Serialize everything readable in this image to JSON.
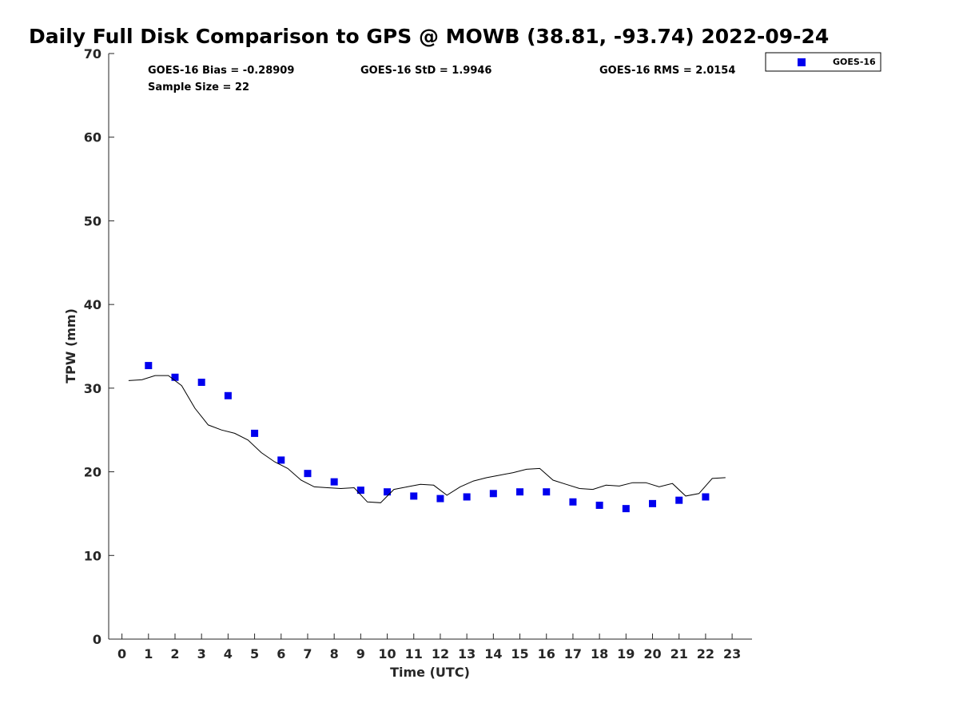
{
  "chart_data": {
    "type": "scatter",
    "title": "Daily Full Disk Comparison to GPS @ MOWB (38.81, -93.74) 2022-09-24",
    "xlabel": "Time (UTC)",
    "ylabel": "TPW (mm)",
    "xlim": [
      -0.5,
      23.75
    ],
    "ylim": [
      0,
      70
    ],
    "xticks": [
      0,
      1,
      2,
      3,
      4,
      5,
      6,
      7,
      8,
      9,
      10,
      11,
      12,
      13,
      14,
      15,
      16,
      17,
      18,
      19,
      20,
      21,
      22,
      23
    ],
    "yticks": [
      0,
      10,
      20,
      30,
      40,
      50,
      60,
      70
    ],
    "grid": false,
    "legend_position": "top-right, outside plot",
    "stats": {
      "bias": "GOES-16 Bias = -0.28909",
      "std": "GOES-16 StD = 1.9946",
      "rms": "GOES-16 RMS = 2.0154",
      "sample_size": "Sample Size = 22"
    },
    "series": [
      {
        "name": "GOES-16",
        "kind": "scatter",
        "marker": "square",
        "color": "#0000ee",
        "x": [
          1,
          2,
          3,
          4,
          5,
          6,
          7,
          8,
          9,
          10,
          11,
          12,
          13,
          14,
          15,
          16,
          17,
          18,
          19,
          20,
          21,
          22
        ],
        "y": [
          32.7,
          31.3,
          30.7,
          29.1,
          24.6,
          21.4,
          19.8,
          18.8,
          17.8,
          17.6,
          17.1,
          16.8,
          17.0,
          17.4,
          17.6,
          17.6,
          16.4,
          16.0,
          15.6,
          16.2,
          16.6,
          17.0
        ]
      },
      {
        "kind": "line",
        "color": "#000000",
        "x": [
          0.25,
          0.75,
          1.25,
          1.75,
          2.25,
          2.75,
          3.25,
          3.75,
          4.25,
          4.75,
          5.25,
          5.75,
          6.25,
          6.75,
          7.25,
          7.75,
          8.25,
          8.75,
          9.25,
          9.75,
          10.25,
          10.75,
          11.25,
          11.75,
          12.25,
          12.75,
          13.25,
          13.75,
          14.25,
          14.75,
          15.25,
          15.75,
          16.25,
          16.75,
          17.25,
          17.75,
          18.25,
          18.75,
          19.25,
          19.75,
          20.25,
          20.75,
          21.25,
          21.75,
          22.25,
          22.75
        ],
        "y": [
          30.9,
          31.0,
          31.5,
          31.5,
          30.3,
          27.6,
          25.6,
          25.0,
          24.6,
          23.8,
          22.3,
          21.2,
          20.4,
          19.0,
          18.2,
          18.1,
          18.0,
          18.1,
          16.4,
          16.3,
          17.9,
          18.2,
          18.5,
          18.4,
          17.2,
          18.2,
          18.9,
          19.3,
          19.6,
          19.9,
          20.3,
          20.4,
          19.0,
          18.5,
          18.0,
          17.9,
          18.4,
          18.3,
          18.7,
          18.7,
          18.2,
          18.6,
          17.1,
          17.4,
          19.2,
          19.3
        ]
      }
    ]
  }
}
